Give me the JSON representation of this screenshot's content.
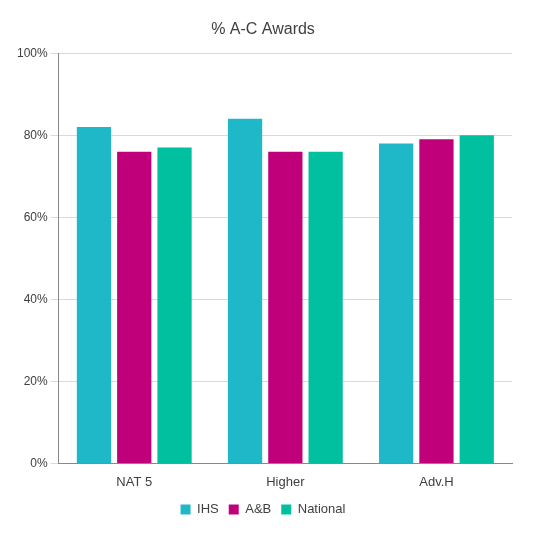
{
  "chart_data": {
    "type": "bar",
    "title": "% A-C Awards",
    "categories": [
      "NAT 5",
      "Higher",
      "Adv.H"
    ],
    "series": [
      {
        "name": "IHS",
        "color": "#1fb8c8",
        "values": [
          82,
          84,
          78
        ]
      },
      {
        "name": "A&B",
        "color": "#c0007a",
        "values": [
          76,
          76,
          79
        ]
      },
      {
        "name": "National",
        "color": "#00c0a0",
        "values": [
          77,
          76,
          80
        ]
      }
    ],
    "ylim": [
      0,
      100
    ],
    "yticks": [
      {
        "value": 0,
        "label": "0%"
      },
      {
        "value": 20,
        "label": "20%"
      },
      {
        "value": 40,
        "label": "40%"
      },
      {
        "value": 60,
        "label": "60%"
      },
      {
        "value": 80,
        "label": "80%"
      },
      {
        "value": 100,
        "label": "100%"
      }
    ],
    "grid": true,
    "legend": "bottom"
  }
}
